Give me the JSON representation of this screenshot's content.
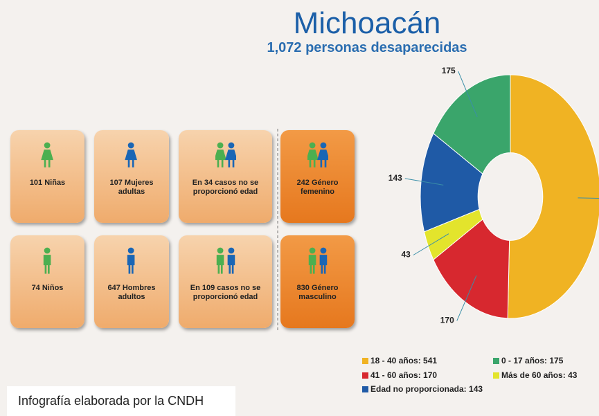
{
  "title": "Michoacán",
  "subtitle": "1,072 personas desaparecidas",
  "tiles": [
    "101 Niñas",
    "107 Mujeres adultas",
    "En 34 casos no se proporcionó edad",
    "242 Género femenino",
    "74 Niños",
    "647 Hombres adultos",
    "En 109 casos no se proporcionó edad",
    "830 Género masculino"
  ],
  "footer": "Infografía elaborada por la CNDH",
  "chart_data": {
    "type": "donut",
    "categories": [
      "18 - 40 años",
      "41 - 60 años",
      "Más de 60 años",
      "Edad no proporcionada",
      "0 - 17 años"
    ],
    "values": [
      541,
      170,
      43,
      143,
      175
    ],
    "colors": [
      "#f0b323",
      "#d7282f",
      "#e3e42c",
      "#1f5aa6",
      "#3aa56b"
    ]
  }
}
